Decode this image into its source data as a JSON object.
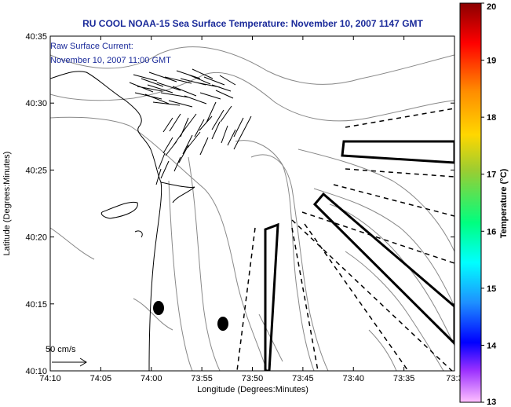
{
  "title": "RU COOL  NOAA-15  Sea Surface Temperature:  November 10, 2007 1147 GMT",
  "annotation": {
    "line1": "Raw Surface Current:",
    "line2": "November 10, 2007 11:00 GMT"
  },
  "scale_label": "50 cm/s",
  "axes": {
    "xlabel": "Longitude (Degrees:Minutes)",
    "ylabel": "Latitude (Degrees:Minutes)",
    "x_ticks": [
      "74:10",
      "74:05",
      "74:00",
      "73:55",
      "73:50",
      "73:45",
      "73:40",
      "73:35",
      "73:3"
    ],
    "y_ticks": [
      "40:35",
      "40:30",
      "40:25",
      "40:20",
      "40:15",
      "40:10"
    ]
  },
  "colorbar": {
    "label": "Temperature (°C)",
    "ticks": [
      "20",
      "19",
      "18",
      "17",
      "16",
      "15",
      "14",
      "13"
    ],
    "colors": [
      "#8b0000",
      "#ff0000",
      "#ff8c00",
      "#ffd700",
      "#9acd32",
      "#00ff7f",
      "#00ffff",
      "#1e90ff",
      "#0000ff",
      "#8a2be2",
      "#ff66ff",
      "#ffc0ff"
    ]
  }
}
